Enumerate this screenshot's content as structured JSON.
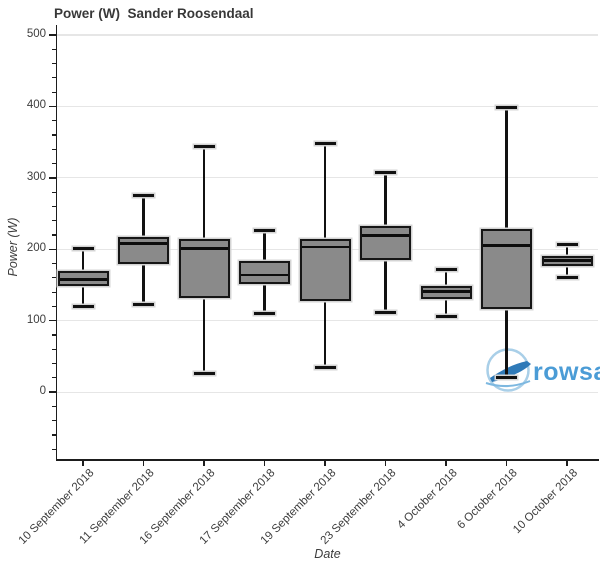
{
  "header": {
    "title": "Power (W)  Sander Roosendaal"
  },
  "watermark": {
    "text": "rowsan",
    "text_color": "#4b9cd6",
    "ring_color": "#a9cfe8",
    "boat_color": "#2f7ab8",
    "water_color": "#7db8e0"
  },
  "chart_data": {
    "type": "box",
    "title": "Power (W)  Sander Roosendaal",
    "xlabel": "Date",
    "ylabel": "Power (W)",
    "categories": [
      "10 September 2018",
      "11 September 2018",
      "16 September 2018",
      "17 September 2018",
      "19 September 2018",
      "23 September 2018",
      "4 October 2018",
      "6 October 2018",
      "10 October 2018"
    ],
    "boxes": [
      {
        "category": "10 September 2018",
        "low": 120,
        "q1": 149,
        "median": 158,
        "q3": 170,
        "high": 201
      },
      {
        "category": "11 September 2018",
        "low": 123,
        "q1": 180,
        "median": 208,
        "q3": 217,
        "high": 276
      },
      {
        "category": "16 September 2018",
        "low": 26,
        "q1": 132,
        "median": 201,
        "q3": 215,
        "high": 344
      },
      {
        "category": "17 September 2018",
        "low": 110,
        "q1": 152,
        "median": 164,
        "q3": 183,
        "high": 227
      },
      {
        "category": "19 September 2018",
        "low": 35,
        "q1": 127,
        "median": 203,
        "q3": 215,
        "high": 348
      },
      {
        "category": "23 September 2018",
        "low": 112,
        "q1": 185,
        "median": 219,
        "q3": 233,
        "high": 308
      },
      {
        "category": "4 October 2018",
        "low": 106,
        "q1": 130,
        "median": 141,
        "q3": 148,
        "high": 172
      },
      {
        "category": "6 October 2018",
        "low": 21,
        "q1": 117,
        "median": 205,
        "q3": 229,
        "high": 398
      },
      {
        "category": "10 October 2018",
        "low": 160,
        "q1": 177,
        "median": 184,
        "q3": 190,
        "high": 207
      }
    ],
    "yticks": [
      0,
      100,
      200,
      300,
      400,
      500
    ],
    "ytick_labels": [
      "0",
      "100",
      "200",
      "300",
      "400",
      "500"
    ],
    "minor_tick_step": 20,
    "ylim_visible": [
      -95,
      514
    ],
    "grid": "horizontal-major",
    "legend": "none",
    "box_fill": "#8a8a8a",
    "box_line": "#161616",
    "halo_color": "#d4d4d4",
    "grid_color": "#e6e6e6",
    "axis_color": "#1d1d1d"
  }
}
